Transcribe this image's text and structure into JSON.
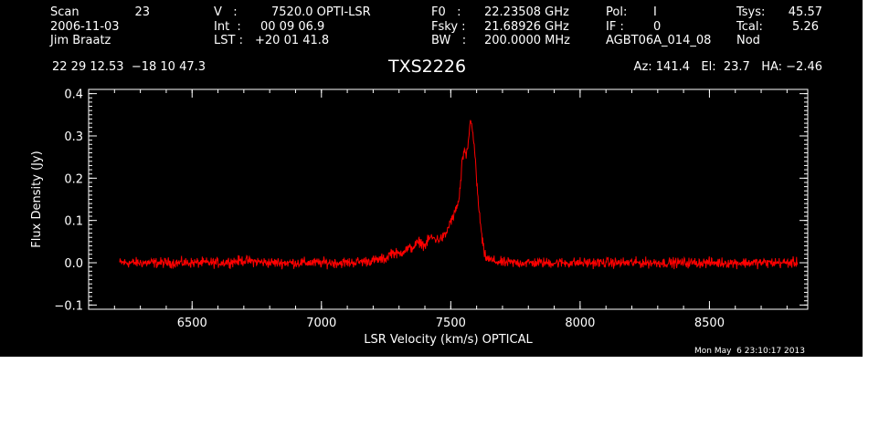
{
  "header": {
    "scan_label": "Scan",
    "scan_value": "23",
    "date": "2006-11-03",
    "observer": "Jim Braatz",
    "v_label": "V   :",
    "v_value": "7520.0 OPTI-LSR",
    "int_label": "Int  :",
    "int_value": "00 09 06.9",
    "lst_label": "LST :",
    "lst_value": "+20 01 41.8",
    "f0_label": "F0   :",
    "f0_value": "22.23508 GHz",
    "fsky_label": "Fsky :",
    "fsky_value": "21.68926 GHz",
    "bw_label": "BW   :",
    "bw_value": "200.0000 MHz",
    "pol_label": "Pol:",
    "pol_value": "I",
    "if_label": "IF :",
    "if_value": "0",
    "project": "AGBT06A_014_08",
    "tsys_label": "Tsys:",
    "tsys_value": "45.57",
    "tcal_label": "Tcal:",
    "tcal_value": "5.26",
    "procedure": "Nod",
    "coords": "22 29 12.53  −18 10 47.3",
    "source": "TXS2226",
    "az_el_ha": "Az: 141.4   El:  23.7   HA: −2.46"
  },
  "timestamp": "Mon May  6 23:10:17 2013",
  "colors": {
    "background": "#000000",
    "axes": "#ffffff",
    "spectrum": "#ff0000"
  },
  "chart_data": {
    "type": "line",
    "title": "TXS2226",
    "xlabel": "LSR Velocity (km/s) OPTICAL",
    "ylabel": "Flux Density (Jy)",
    "xlim": [
      6100,
      8880
    ],
    "ylim": [
      -0.11,
      0.41
    ],
    "xticks": [
      6500,
      7000,
      7500,
      8000,
      8500
    ],
    "yticks": [
      -0.1,
      0.0,
      0.1,
      0.2,
      0.3,
      0.4
    ],
    "ytick_labels": [
      "−0.1",
      "0.0",
      "0.1",
      "0.2",
      "0.3",
      "0.4"
    ],
    "grid": false,
    "series": [
      {
        "color": "#ff0000",
        "x": [
          6220,
          6300,
          6400,
          6500,
          6600,
          6700,
          6800,
          6900,
          7000,
          7100,
          7200,
          7250,
          7270,
          7300,
          7320,
          7350,
          7380,
          7400,
          7420,
          7450,
          7470,
          7480,
          7500,
          7510,
          7520,
          7530,
          7540,
          7545,
          7550,
          7555,
          7560,
          7565,
          7570,
          7575,
          7580,
          7585,
          7590,
          7595,
          7600,
          7610,
          7620,
          7630,
          7640,
          7660,
          7700,
          7800,
          7900,
          8000,
          8100,
          8200,
          8300,
          8400,
          8500,
          8600,
          8700,
          8800,
          8840
        ],
        "y": [
          0.0,
          0.0,
          0.0,
          0.0,
          0.0,
          0.005,
          0.0,
          0.0,
          0.0,
          0.0,
          0.005,
          0.01,
          0.025,
          0.02,
          0.03,
          0.035,
          0.05,
          0.04,
          0.06,
          0.055,
          0.06,
          0.065,
          0.1,
          0.105,
          0.13,
          0.14,
          0.2,
          0.25,
          0.255,
          0.26,
          0.25,
          0.27,
          0.3,
          0.33,
          0.34,
          0.31,
          0.27,
          0.25,
          0.19,
          0.12,
          0.06,
          0.02,
          0.01,
          0.005,
          0.0,
          0.0,
          0.0,
          0.0,
          0.0,
          0.0,
          0.0,
          0.0,
          0.0,
          0.0,
          0.0,
          0.0,
          0.0
        ]
      }
    ]
  }
}
